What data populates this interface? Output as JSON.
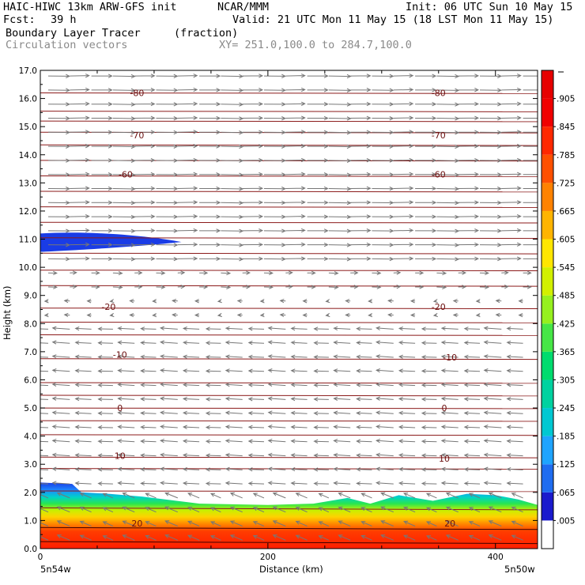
{
  "header": {
    "model": "HAIC-HIWC 13km ARW-GFS init",
    "org": "NCAR/MMM",
    "init": "Init: 06 UTC Sun 10 May 15",
    "fcst_label": "Fcst:",
    "fcst_value": "39 h",
    "valid": "Valid: 21 UTC Mon 11 May 15 (18 LST Mon 11 May 15)",
    "field": "Boundary Layer Tracer",
    "units": "(fraction)",
    "vectors": "Circulation vectors",
    "xy": "XY= 251.0,100.0 to 284.7,100.0"
  },
  "chart_data": {
    "type": "heatmap",
    "xlabel": "Distance (km)",
    "ylabel": "Height (km)",
    "xlim": [
      0,
      437
    ],
    "ylim": [
      0,
      17
    ],
    "x_ticks": [
      "0",
      "200",
      "400"
    ],
    "y_ticks": [
      "0.0",
      "1.0",
      "2.0",
      "3.0",
      "4.0",
      "5.0",
      "6.0",
      "7.0",
      "8.0",
      "9.0",
      "10.0",
      "11.0",
      "12.0",
      "13.0",
      "14.0",
      "15.0",
      "16.0",
      "17.0"
    ],
    "x_start_label": "5n54w",
    "x_end_label": "5n50w",
    "contour_labels": [
      {
        "text": "-80",
        "x": 85,
        "y": 16.2
      },
      {
        "text": "-80",
        "x": 350,
        "y": 16.2
      },
      {
        "text": "-70",
        "x": 85,
        "y": 14.7
      },
      {
        "text": "-70",
        "x": 350,
        "y": 14.7
      },
      {
        "text": "-60",
        "x": 75,
        "y": 13.3
      },
      {
        "text": "-60",
        "x": 350,
        "y": 13.3
      },
      {
        "text": "-20",
        "x": 60,
        "y": 8.6
      },
      {
        "text": "-20",
        "x": 350,
        "y": 8.6
      },
      {
        "text": "-10",
        "x": 70,
        "y": 6.9
      },
      {
        "text": "-10",
        "x": 360,
        "y": 6.8
      },
      {
        "text": "0",
        "x": 70,
        "y": 5.0
      },
      {
        "text": "0",
        "x": 355,
        "y": 5.0
      },
      {
        "text": "10",
        "x": 70,
        "y": 3.3
      },
      {
        "text": "10",
        "x": 355,
        "y": 3.2
      },
      {
        "text": "20",
        "x": 85,
        "y": 0.9
      },
      {
        "text": "20",
        "x": 360,
        "y": 0.9
      }
    ],
    "colorbar": {
      "labels": [
        ".005",
        ".065",
        ".125",
        ".185",
        ".245",
        ".305",
        ".365",
        ".425",
        ".485",
        ".545",
        ".605",
        ".665",
        ".725",
        ".785",
        ".845",
        ".905"
      ],
      "colors": [
        "#ffffff",
        "#1a1acd",
        "#1e6cf0",
        "#1ea4ff",
        "#00c8d2",
        "#00d2a0",
        "#00dc6e",
        "#46e646",
        "#96f01e",
        "#d2f000",
        "#ffe600",
        "#ffb400",
        "#ff8200",
        "#ff5000",
        "#ff2800",
        "#f00000",
        "#e60000"
      ]
    }
  }
}
